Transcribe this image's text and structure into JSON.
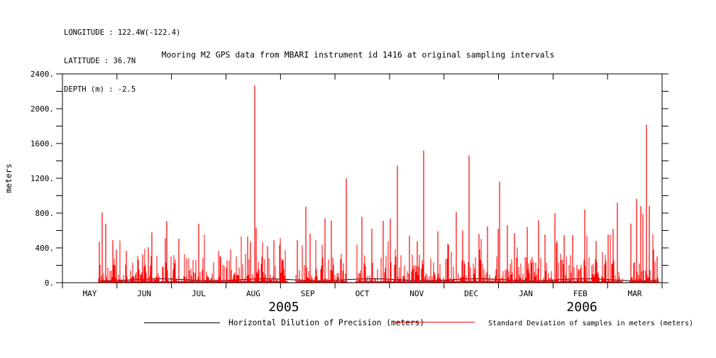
{
  "header": {
    "longitude": "LONGITUDE : 122.4W(-122.4)",
    "latitude": "LATITUDE : 36.7N",
    "depth": "DEPTH (m) : -2.5"
  },
  "title": "Mooring M2 GPS data from MBARI instrument id 1416 at original sampling intervals",
  "legend": {
    "items": [
      {
        "label": "Horizontal Dilution of Precision (meters)",
        "color": "#000000"
      },
      {
        "label": "Standard Deviation of samples in meters (meters)",
        "color": "#ff0000"
      }
    ]
  },
  "chart_data": {
    "type": "line",
    "title": "Mooring M2 GPS data from MBARI instrument id 1416 at original sampling intervals",
    "xlabel": "",
    "ylabel": "meters",
    "ylim": [
      0,
      2400
    ],
    "ytick_major_step": 400,
    "ytick_minor_step": 200,
    "ytick_labels": [
      "0.",
      "400.",
      "800.",
      "1200.",
      "1600.",
      "2000.",
      "2400."
    ],
    "grid": false,
    "legend_position": "bottom",
    "x_months": [
      "MAY",
      "JUN",
      "JUL",
      "AUG",
      "SEP",
      "OCT",
      "NOV",
      "DEC",
      "JAN",
      "FEB",
      "MAR"
    ],
    "x_years": [
      {
        "label": "2005",
        "month_frac": 4.06
      },
      {
        "label": "2006",
        "month_frac": 9.53
      }
    ],
    "series": [
      {
        "name": "Horizontal Dilution of Precision (meters)",
        "color": "#000000",
        "style": "near-zero flat line, mostly hidden under red series",
        "typical_value_m": 25
      },
      {
        "name": "Standard Deviation of samples in meters (meters)",
        "color": "#ff0000",
        "style": "dense vertical spikes from zero baseline",
        "baseline_typical_m": [
          15,
          200
        ],
        "seed": 11,
        "medium_spike_probability": 0.055,
        "medium_spike_range_m": [
          250,
          570
        ]
      }
    ],
    "data_start_month_frac": 0.664,
    "data_end_month_frac": 10.94,
    "gaps_month_frac": [
      [
        4.13,
        4.28
      ],
      [
        5.23,
        5.38
      ],
      [
        10.28,
        10.39
      ]
    ],
    "major_spikes": [
      [
        0.677,
        470
      ],
      [
        0.729,
        805
      ],
      [
        0.794,
        675
      ],
      [
        0.924,
        490
      ],
      [
        0.989,
        380
      ],
      [
        1.171,
        366
      ],
      [
        1.471,
        325
      ],
      [
        1.575,
        407
      ],
      [
        1.64,
        578
      ],
      [
        1.887,
        512
      ],
      [
        1.913,
        708
      ],
      [
        2.135,
        504
      ],
      [
        2.499,
        675
      ],
      [
        2.89,
        310
      ],
      [
        3.397,
        529
      ],
      [
        3.449,
        470
      ],
      [
        3.528,
        2265
      ],
      [
        3.554,
        635
      ],
      [
        3.762,
        420
      ],
      [
        3.879,
        490
      ],
      [
        4.309,
        490
      ],
      [
        4.465,
        873
      ],
      [
        4.543,
        561
      ],
      [
        4.816,
        738
      ],
      [
        4.933,
        714
      ],
      [
        5.207,
        1199
      ],
      [
        5.493,
        757
      ],
      [
        5.675,
        620
      ],
      [
        5.883,
        710
      ],
      [
        6.014,
        738
      ],
      [
        6.144,
        1345
      ],
      [
        6.365,
        540
      ],
      [
        6.508,
        475
      ],
      [
        6.625,
        1519
      ],
      [
        6.886,
        591
      ],
      [
        7.081,
        434
      ],
      [
        7.224,
        814
      ],
      [
        7.341,
        600
      ],
      [
        7.459,
        1464
      ],
      [
        7.641,
        560
      ],
      [
        7.797,
        645
      ],
      [
        7.992,
        618
      ],
      [
        8.018,
        1162
      ],
      [
        8.161,
        660
      ],
      [
        8.292,
        570
      ],
      [
        8.526,
        640
      ],
      [
        8.734,
        716
      ],
      [
        8.851,
        553
      ],
      [
        9.034,
        800
      ],
      [
        9.203,
        540
      ],
      [
        9.359,
        545
      ],
      [
        9.58,
        838
      ],
      [
        9.789,
        480
      ],
      [
        10.01,
        553
      ],
      [
        10.101,
        620
      ],
      [
        10.179,
        920
      ],
      [
        10.427,
        680
      ],
      [
        10.531,
        963
      ],
      [
        10.609,
        880
      ],
      [
        10.648,
        790
      ],
      [
        10.713,
        1814
      ],
      [
        10.765,
        882
      ],
      [
        10.843,
        380
      ],
      [
        10.909,
        300
      ]
    ]
  }
}
